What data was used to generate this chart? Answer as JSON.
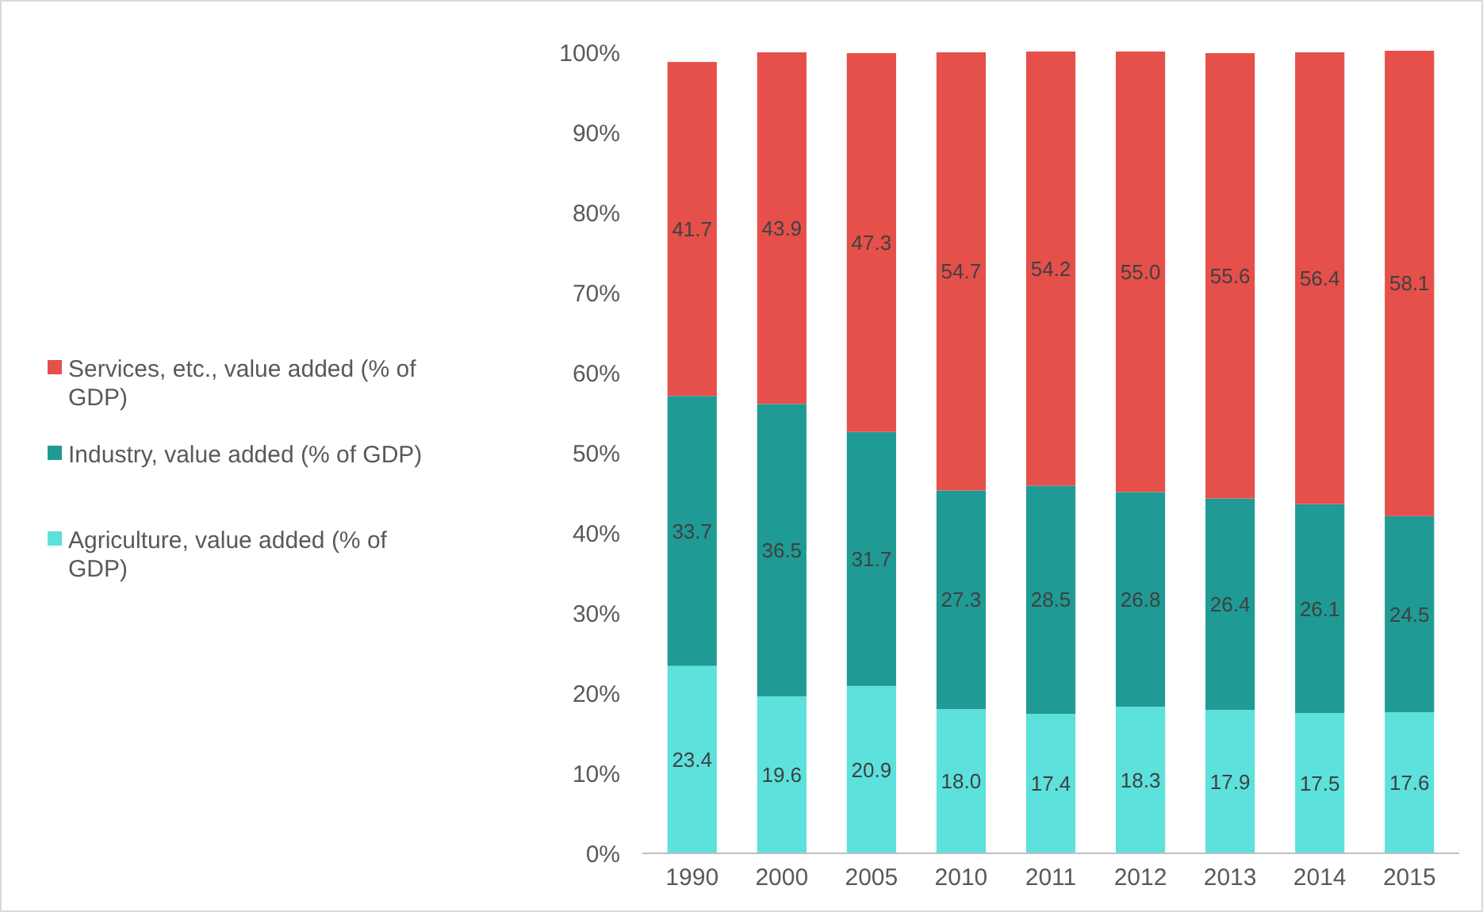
{
  "chart_data": {
    "type": "bar",
    "stacked": true,
    "categories": [
      "1990",
      "2000",
      "2005",
      "2010",
      "2011",
      "2012",
      "2013",
      "2014",
      "2015"
    ],
    "series": [
      {
        "name": "Agriculture, value added (% of GDP)",
        "color": "#5ce1dc",
        "values": [
          23.4,
          19.6,
          20.9,
          18.0,
          17.4,
          18.3,
          17.9,
          17.5,
          17.6
        ],
        "value_labels": [
          "23.4",
          "19.6",
          "20.9",
          "18.0",
          "17.4",
          "18.3",
          "17.9",
          "17.5",
          "17.6"
        ]
      },
      {
        "name": "Industry, value added (% of GDP)",
        "color": "#1f9a94",
        "values": [
          33.7,
          36.5,
          31.7,
          27.3,
          28.5,
          26.8,
          26.4,
          26.1,
          24.5
        ],
        "value_labels": [
          "33.7",
          "36.5",
          "31.7",
          "27.3",
          "28.5",
          "26.8",
          "26.4",
          "26.1",
          "24.5"
        ]
      },
      {
        "name": "Services, etc., value added (% of GDP)",
        "color": "#e5504a",
        "values": [
          41.7,
          43.9,
          47.3,
          54.7,
          54.2,
          55.0,
          55.6,
          56.4,
          58.1
        ],
        "value_labels": [
          "41.7",
          "43.9",
          "47.3",
          "54.7",
          "54.2",
          "55.0",
          "55.6",
          "56.4",
          "58.1"
        ]
      }
    ],
    "ylim": [
      0,
      100
    ],
    "yticks": [
      {
        "value": 0,
        "label": "0%"
      },
      {
        "value": 10,
        "label": "10%"
      },
      {
        "value": 20,
        "label": "20%"
      },
      {
        "value": 30,
        "label": "30%"
      },
      {
        "value": 40,
        "label": "40%"
      },
      {
        "value": 50,
        "label": "50%"
      },
      {
        "value": 60,
        "label": "60%"
      },
      {
        "value": 70,
        "label": "70%"
      },
      {
        "value": 80,
        "label": "80%"
      },
      {
        "value": 90,
        "label": "90%"
      },
      {
        "value": 100,
        "label": "100%"
      }
    ],
    "legend": "left"
  }
}
